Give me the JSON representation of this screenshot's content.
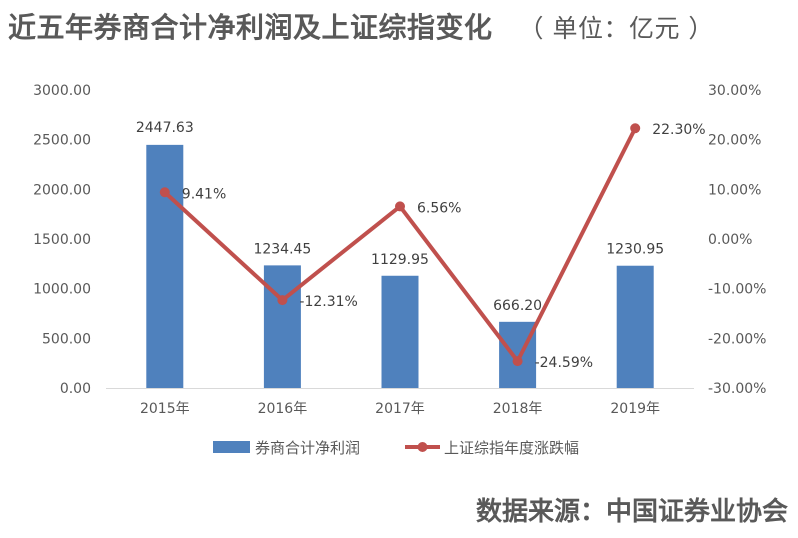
{
  "title": "近五年券商合计净利润及上证综指变化",
  "unit": "（ 单位：亿元 ）",
  "source": "数据来源：中国证券业协会",
  "chart_data": {
    "type": "bar",
    "categories": [
      "2015年",
      "2016年",
      "2017年",
      "2018年",
      "2019年"
    ],
    "series": [
      {
        "name": "券商合计净利润",
        "type": "bar",
        "axis": "left",
        "color": "#4F81BD",
        "values": [
          2447.63,
          1234.45,
          1129.95,
          666.2,
          1230.95
        ],
        "labels": [
          "2447.63",
          "1234.45",
          "1129.95",
          "666.20",
          "1230.95"
        ]
      },
      {
        "name": "上证综指年度涨跌幅",
        "type": "line",
        "axis": "right",
        "color": "#C0504D",
        "values": [
          9.41,
          -12.31,
          6.56,
          -24.59,
          22.3
        ],
        "labels": [
          "9.41%",
          "-12.31%",
          "6.56%",
          "-24.59%",
          "22.30%"
        ]
      }
    ],
    "y_left": {
      "ylim": [
        0,
        3000
      ],
      "ticks": [
        "0.00",
        "500.00",
        "1000.00",
        "1500.00",
        "2000.00",
        "2500.00",
        "3000.00"
      ]
    },
    "y_right": {
      "ylim": [
        -30,
        30
      ],
      "ticks": [
        "-30.00%",
        "-20.00%",
        "-10.00%",
        "0.00%",
        "10.00%",
        "20.00%",
        "30.00%"
      ]
    },
    "grid": false,
    "legend": "bottom"
  }
}
